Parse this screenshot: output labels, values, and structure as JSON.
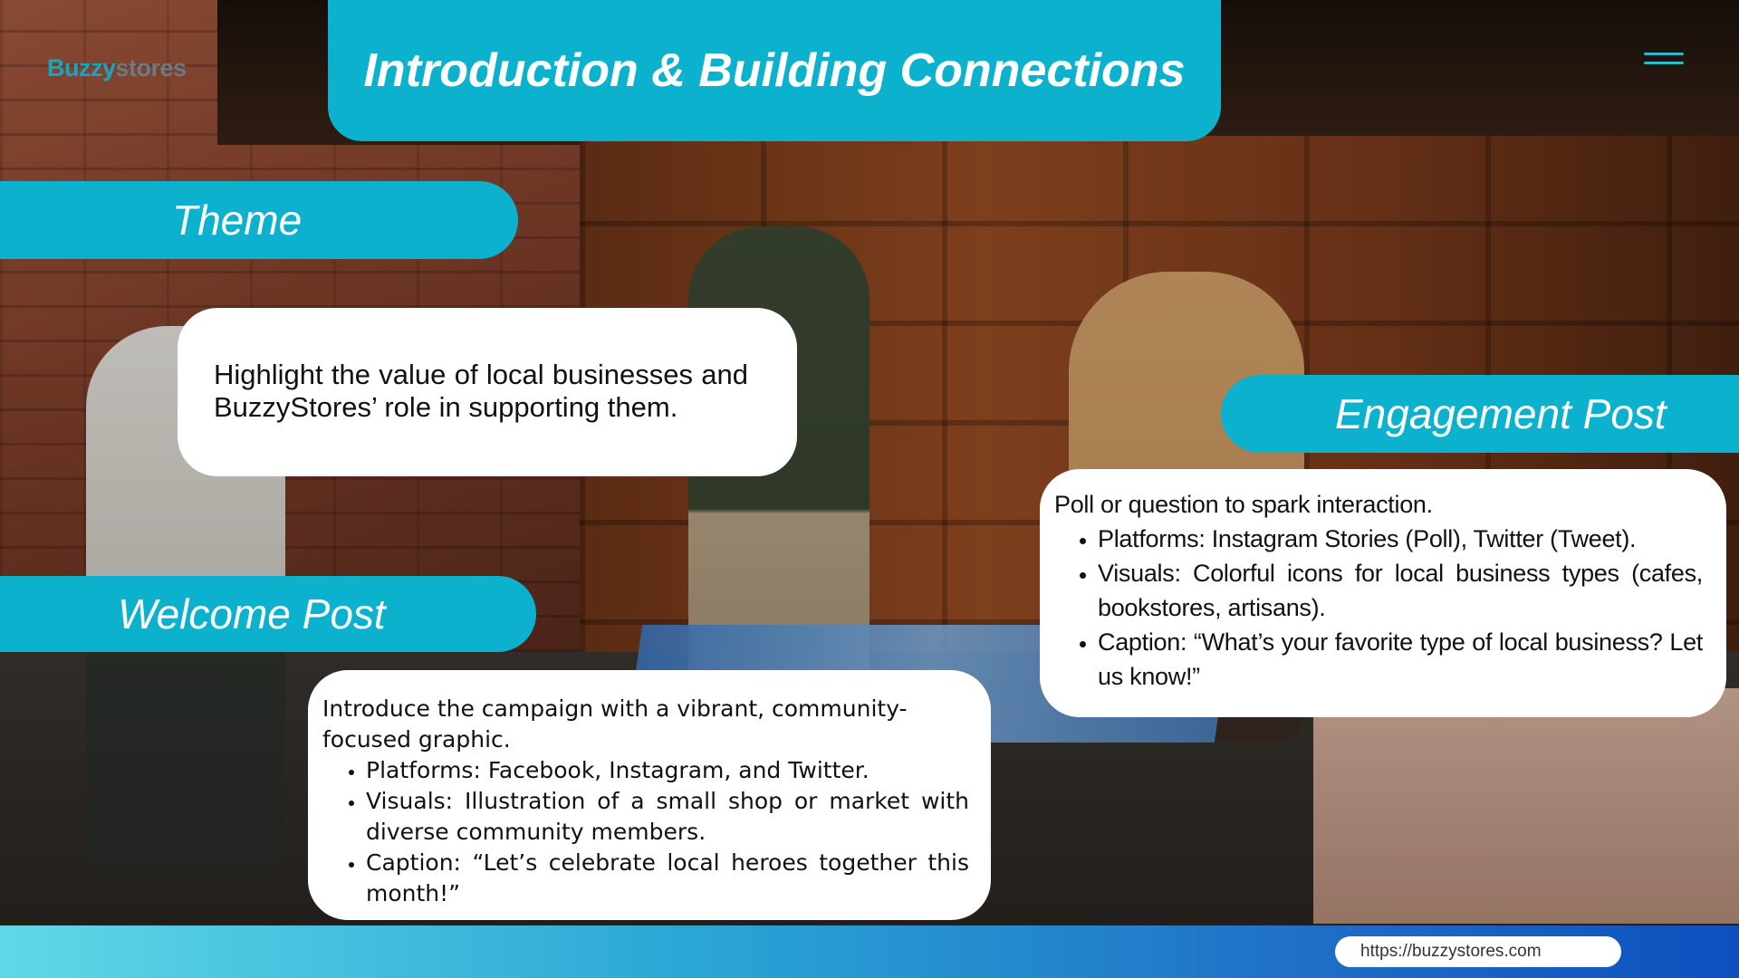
{
  "brand": {
    "logo_part1": "Buzzy",
    "logo_part2": "stores",
    "accent": "#0cb1cd"
  },
  "header": {
    "title": "Introduction & Building Connections",
    "menu_icon": "hamburger-menu-icon"
  },
  "theme": {
    "label": "Theme",
    "text": "Highlight the value of local businesses and BuzzyStores’ role in supporting them."
  },
  "welcome_post": {
    "label": "Welcome Post",
    "intro": "Introduce the campaign with a vibrant, community-focused graphic.",
    "bullets": [
      "Platforms: Facebook, Instagram, and Twitter.",
      "Visuals: Illustration of a small shop or market with diverse community members.",
      "Caption: “Let’s celebrate local heroes together this month!”"
    ]
  },
  "engagement_post": {
    "label": "Engagement Post",
    "intro": "Poll or question to spark interaction.",
    "bullets": [
      "Platforms: Instagram Stories (Poll), Twitter (Tweet).",
      "Visuals: Colorful icons for local business types (cafes, bookstores, artisans).",
      "Caption: “What’s your favorite type of local business? Let us know!”"
    ]
  },
  "footer": {
    "url": "https://buzzystores.com"
  }
}
